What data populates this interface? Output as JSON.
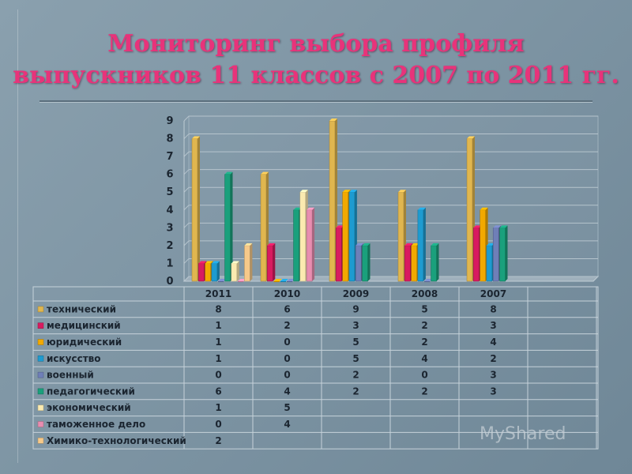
{
  "title_line1": "Мониторинг выбора профиля",
  "title_line2": "выпускников 11 классов с 2007 по 2011 гг.",
  "logo_text": "MyShared",
  "chart_data": {
    "type": "bar",
    "categories": [
      "2011",
      "2010",
      "2009",
      "2008",
      "2007"
    ],
    "ylim": [
      0,
      9
    ],
    "yticks": [
      0,
      1,
      2,
      3,
      4,
      5,
      6,
      7,
      8,
      9
    ],
    "grid": true,
    "series": [
      {
        "name": "технический",
        "color": "#e0b64f",
        "values": [
          8,
          6,
          9,
          5,
          8
        ],
        "labels": [
          "8",
          "6",
          "9",
          "5",
          "8"
        ]
      },
      {
        "name": "медицинский",
        "color": "#d81b60",
        "values": [
          1,
          2,
          3,
          2,
          3
        ],
        "labels": [
          "1",
          "2",
          "3",
          "2",
          "3"
        ]
      },
      {
        "name": "юридический",
        "color": "#f2a900",
        "values": [
          1,
          0,
          5,
          2,
          4
        ],
        "labels": [
          "1",
          "0",
          "5",
          "2",
          "4"
        ]
      },
      {
        "name": "искусство",
        "color": "#1e9bd0",
        "values": [
          1,
          0,
          5,
          4,
          2
        ],
        "labels": [
          "1",
          "0",
          "5",
          "4",
          "2"
        ]
      },
      {
        "name": "военный",
        "color": "#6f7fb8",
        "values": [
          0,
          0,
          2,
          0,
          3
        ],
        "labels": [
          "0",
          "0",
          "2",
          "0",
          "3"
        ]
      },
      {
        "name": "педагогический",
        "color": "#1aa07c",
        "values": [
          6,
          4,
          2,
          2,
          3
        ],
        "labels": [
          "6",
          "4",
          "2",
          "2",
          "3"
        ]
      },
      {
        "name": "экономический",
        "color": "#fbeab0",
        "values": [
          1,
          5,
          null,
          null,
          null
        ],
        "labels": [
          "1",
          "5",
          "",
          "",
          ""
        ]
      },
      {
        "name": "таможенное дело",
        "color": "#e88db0",
        "values": [
          0,
          4,
          null,
          null,
          null
        ],
        "labels": [
          "0",
          "4",
          "",
          "",
          ""
        ]
      },
      {
        "name": "Химико-технологический",
        "color": "#f6c98a",
        "values": [
          2,
          null,
          null,
          null,
          null
        ],
        "labels": [
          "2",
          "",
          "",
          "",
          ""
        ]
      }
    ]
  }
}
